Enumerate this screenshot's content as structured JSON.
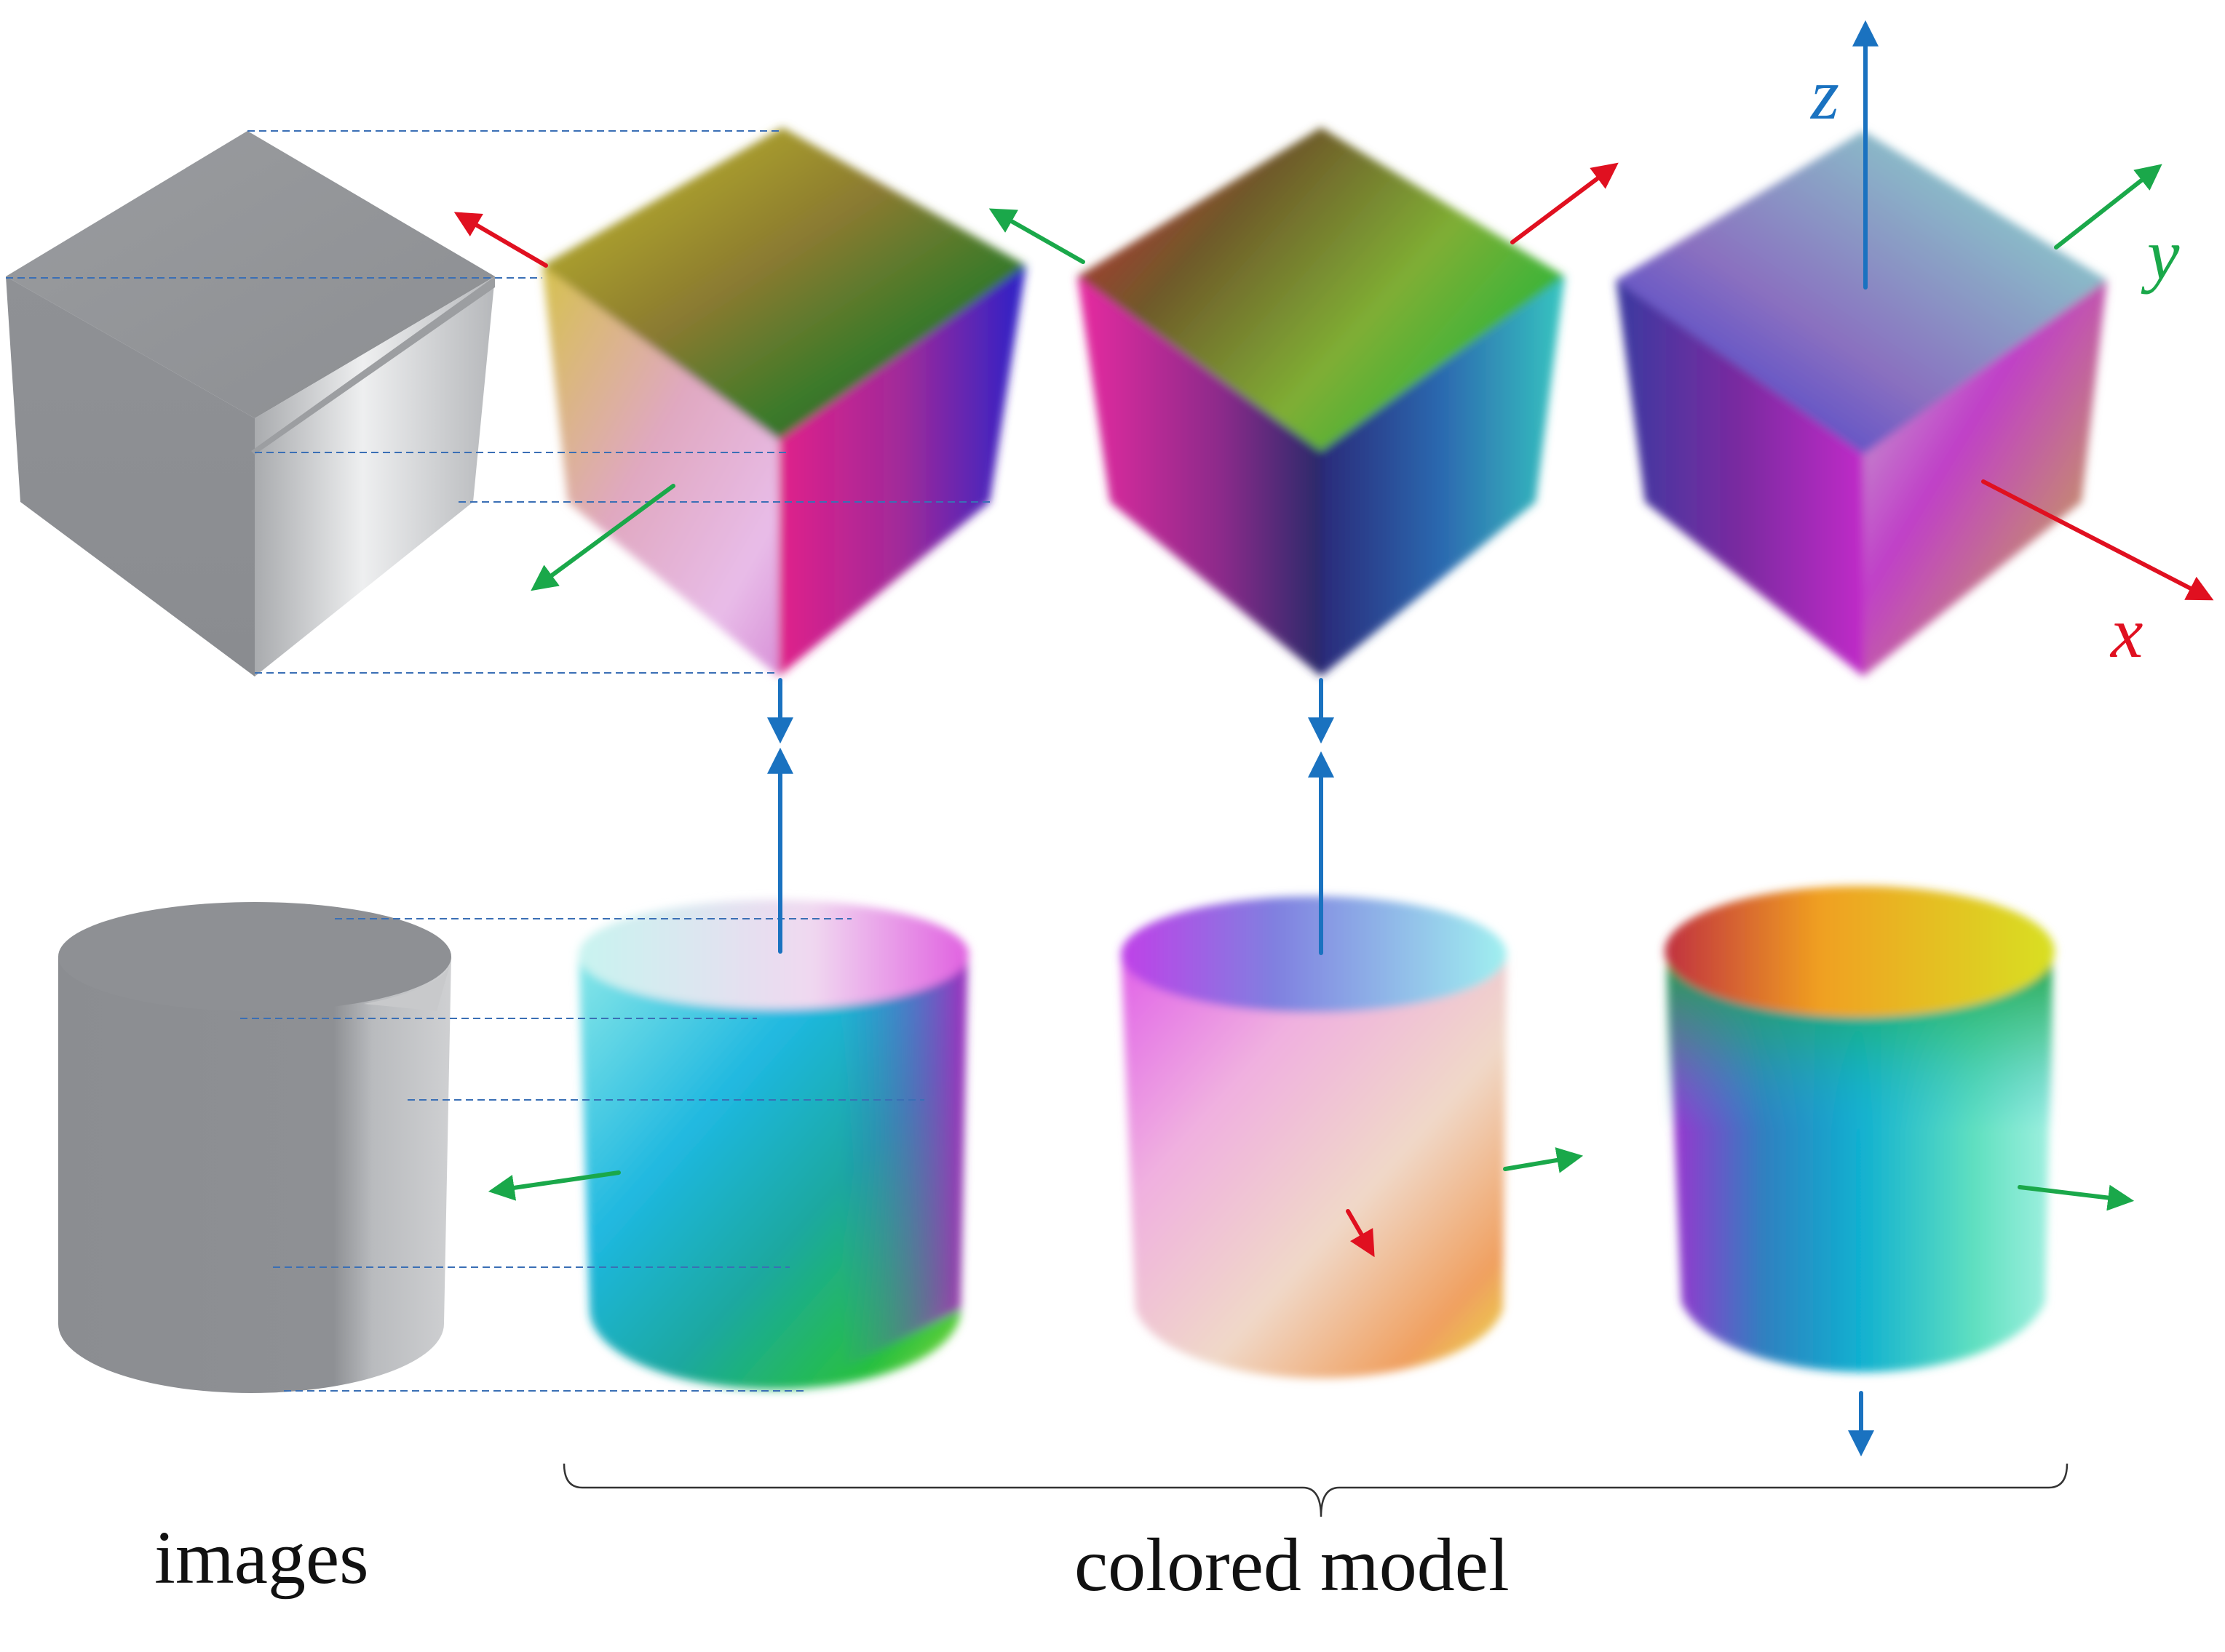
{
  "captions": {
    "images": "images",
    "colored_model": "colored model"
  },
  "axes": {
    "x": {
      "label": "x",
      "color": "#e01020"
    },
    "y": {
      "label": "y",
      "color": "#1aa84a"
    },
    "z": {
      "label": "z",
      "color": "#1a72c0"
    }
  },
  "colors": {
    "gray_face_dark": "#8a8c90",
    "gray_face_mid": "#9ea0a4",
    "gray_face_light": "#e8e9eb",
    "guide_line": "#3a6fb5",
    "brace": "#333333",
    "arrow_red": "#e01020",
    "arrow_green": "#1aa84a",
    "arrow_blue": "#1a72c0"
  },
  "scene": {
    "rows": [
      "cube",
      "cylinder"
    ],
    "columns": [
      "gray-image",
      "colored-view-1",
      "colored-view-2",
      "colored-view-3"
    ]
  }
}
